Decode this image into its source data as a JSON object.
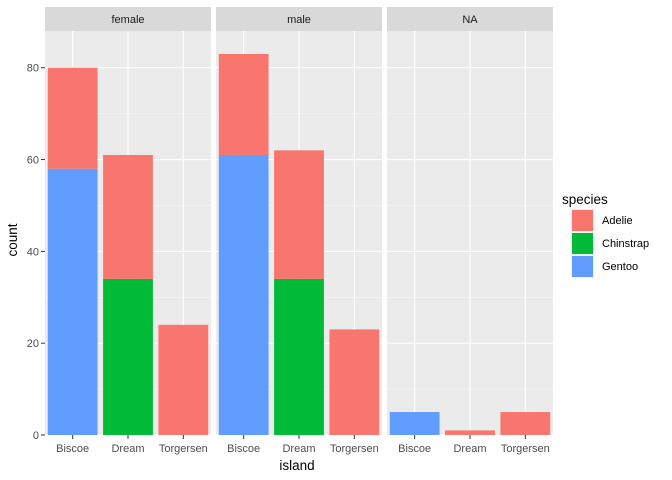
{
  "chart_data": {
    "type": "bar",
    "stacked": true,
    "facet_variable": "sex",
    "facets": [
      "female",
      "male",
      "NA"
    ],
    "categories": [
      "Biscoe",
      "Dream",
      "Torgersen"
    ],
    "xlabel": "island",
    "ylabel": "count",
    "ylim": [
      0,
      88
    ],
    "yticks": [
      0,
      20,
      40,
      60,
      80
    ],
    "grid": true,
    "legend": {
      "title": "species",
      "position": "right",
      "entries": [
        {
          "name": "Adelie",
          "color": "#F8766D"
        },
        {
          "name": "Chinstrap",
          "color": "#00BA38"
        },
        {
          "name": "Gentoo",
          "color": "#619CFF"
        }
      ]
    },
    "series": [
      {
        "name": "Adelie",
        "color": "#F8766D",
        "values": {
          "female": [
            22,
            27,
            24
          ],
          "male": [
            22,
            28,
            23
          ],
          "NA": [
            0,
            1,
            5
          ]
        }
      },
      {
        "name": "Chinstrap",
        "color": "#00BA38",
        "values": {
          "female": [
            0,
            34,
            0
          ],
          "male": [
            0,
            34,
            0
          ],
          "NA": [
            0,
            0,
            0
          ]
        }
      },
      {
        "name": "Gentoo",
        "color": "#619CFF",
        "values": {
          "female": [
            58,
            0,
            0
          ],
          "male": [
            61,
            0,
            0
          ],
          "NA": [
            5,
            0,
            0
          ]
        }
      }
    ],
    "stack_order_bottom_to_top": [
      "Gentoo",
      "Chinstrap",
      "Adelie"
    ]
  }
}
